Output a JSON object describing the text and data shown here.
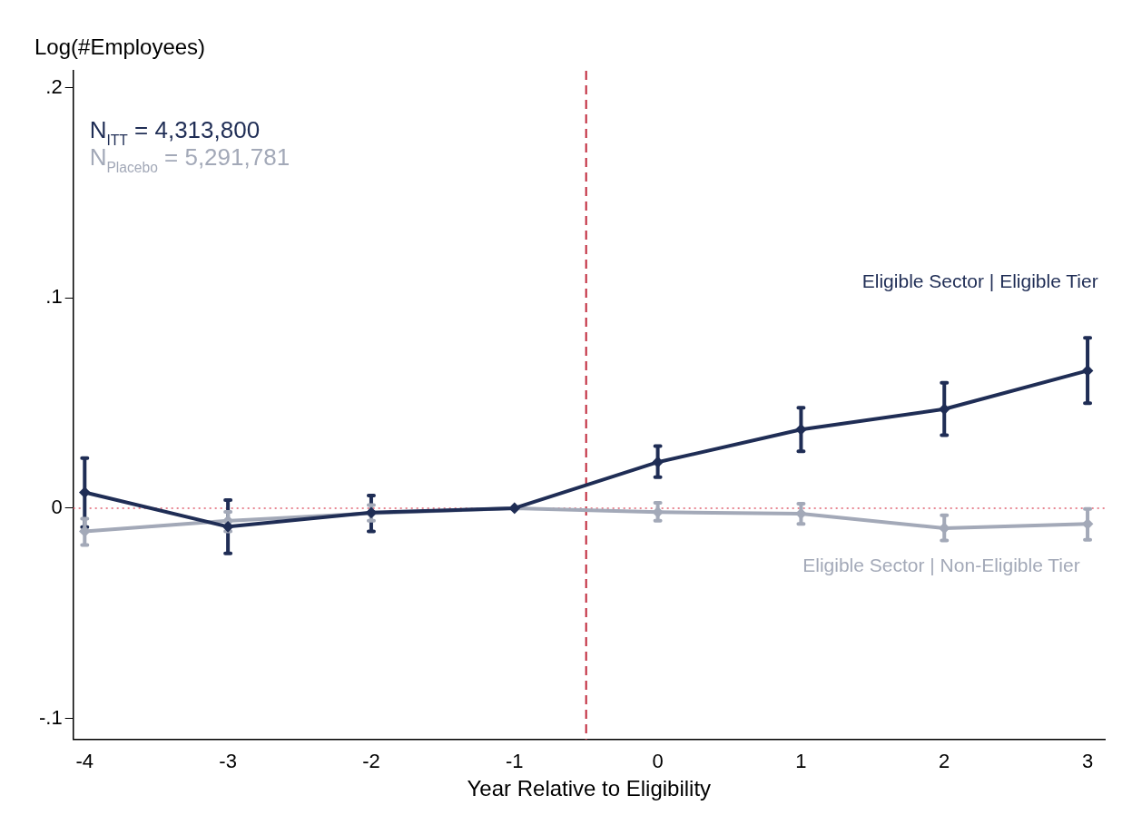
{
  "chart_data": {
    "type": "line",
    "xlabel": "Year Relative to Eligibility",
    "ylabel": "Log(#Employees)",
    "x": [
      -4,
      -3,
      -2,
      -1,
      0,
      1,
      2,
      3
    ],
    "series": [
      {
        "name": "Eligible Sector | Eligible Tier",
        "color": "#1f2d55",
        "values": [
          0.0075,
          -0.0088,
          -0.0021,
          0,
          0.0219,
          0.0374,
          0.0471,
          0.0654
        ],
        "errors": [
          [
            -0.009,
            0.0238
          ],
          [
            -0.0215,
            0.0039
          ],
          [
            -0.011,
            0.006
          ],
          null,
          [
            0.0147,
            0.0295
          ],
          [
            0.0271,
            0.0478
          ],
          [
            0.0347,
            0.0596
          ],
          [
            0.0499,
            0.081
          ]
        ]
      },
      {
        "name": "Eligible Sector | Non-Eligible Tier",
        "color": "#a3a9b8",
        "values": [
          -0.011,
          -0.006,
          -0.0024,
          0,
          -0.0019,
          -0.0026,
          -0.0095,
          -0.0075
        ],
        "errors": [
          [
            -0.0175,
            -0.005
          ],
          [
            -0.011,
            -0.0018
          ],
          [
            -0.006,
            0.0015
          ],
          null,
          [
            -0.006,
            0.0026
          ],
          [
            -0.0075,
            0.0021
          ],
          [
            -0.0153,
            -0.0034
          ],
          [
            -0.015,
            -0.0003
          ]
        ]
      }
    ],
    "xlim": [
      -4.08,
      3.12
    ],
    "xticks": [
      -4,
      -3,
      -2,
      -1,
      0,
      1,
      2,
      3
    ],
    "ylim": [
      -0.11,
      0.208
    ],
    "yticks": [
      {
        "value": -0.1,
        "label": "-.1"
      },
      {
        "value": 0,
        "label": "0"
      },
      {
        "value": 0.1,
        "label": ".1"
      },
      {
        "value": 0.2,
        "label": ".2"
      }
    ],
    "ref_lines": [
      {
        "axis": "x",
        "value": -0.5,
        "color": "#c0273a",
        "line_style": "dashed"
      },
      {
        "axis": "y",
        "value": 0,
        "color": "#e06070",
        "line_style": "dotted"
      }
    ],
    "annotations": [
      "N$_{ITT}$ = 4,313,800",
      "N$_{Placebo}$ = 5,291,781"
    ],
    "marker": "diamond",
    "line_style": "solid",
    "grid": false,
    "legend": false
  }
}
